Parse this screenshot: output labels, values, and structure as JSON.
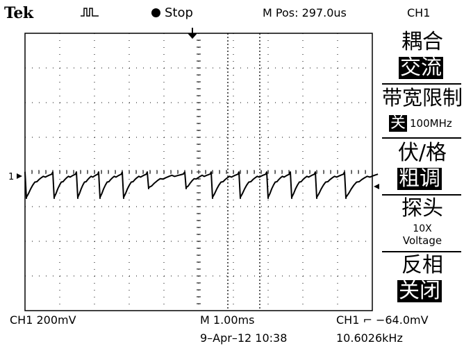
{
  "header": {
    "brand": "Tek",
    "trigger_icon": "trigger-pulse-icon",
    "run_state": "Stop",
    "m_pos": "M Pos: 297.0us",
    "channel": "CH1"
  },
  "menu": {
    "coupling_title": "耦合",
    "coupling_value": "交流",
    "bw_title": "带宽限制",
    "bw_state": "关",
    "bw_value": "100MHz",
    "volts_title": "伏/格",
    "volts_value": "粗调",
    "probe_title": "探头",
    "probe_mult": "10X",
    "probe_type": "Voltage",
    "invert_title": "反相",
    "invert_value": "关闭"
  },
  "channel_marker": "1",
  "readouts": {
    "ch1_scale": "CH1  200mV",
    "time_scale": "M 1.00ms",
    "trigger": "CH1 ⌐ −64.0mV",
    "date": "9–Apr–12 10:38",
    "frequency": "10.6026kHz"
  },
  "colors": {
    "background": "#ffffff",
    "trace": "#000000",
    "grid": "#000000"
  }
}
